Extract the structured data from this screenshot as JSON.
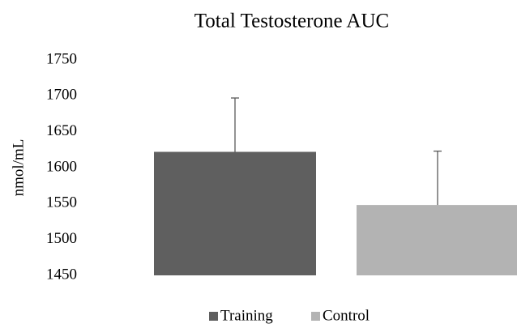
{
  "chart_data": {
    "type": "bar",
    "title": "Total Testosterone AUC",
    "y_label": "nmol/mL",
    "categories": [
      null
    ],
    "series": [
      {
        "name": "Training",
        "color": "#5f5f5f",
        "values": [
          1622
        ],
        "errors": [
          75
        ]
      },
      {
        "name": "Control",
        "color": "#b3b3b3",
        "values": [
          1548
        ],
        "errors": [
          75
        ]
      }
    ],
    "ylim": [
      1450,
      1750
    ],
    "yticks": [
      1450,
      1500,
      1550,
      1600,
      1650,
      1700,
      1750
    ],
    "grid": false
  }
}
